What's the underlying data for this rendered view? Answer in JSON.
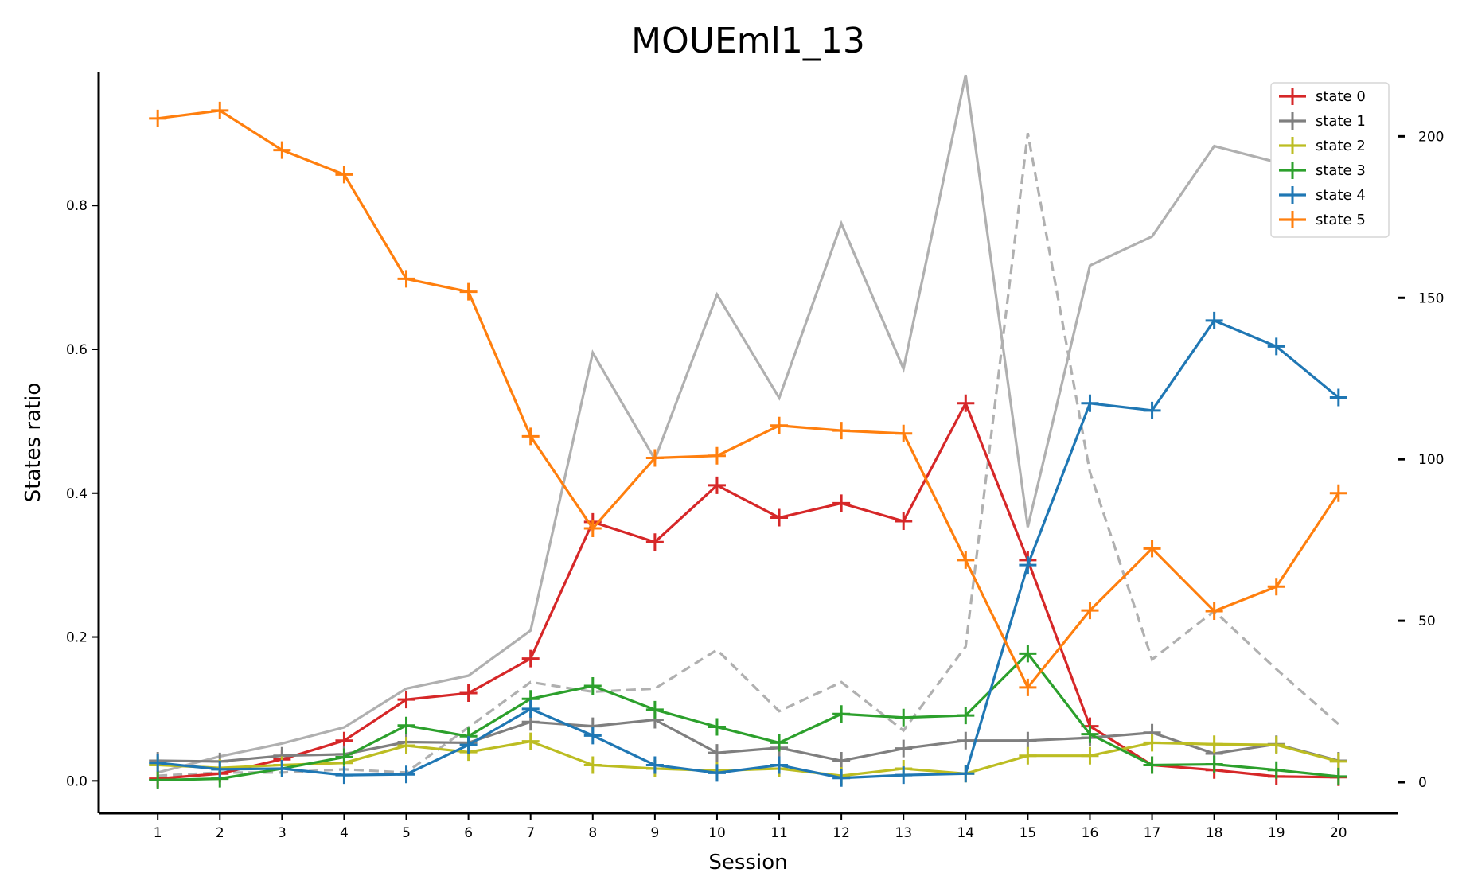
{
  "chart_data": {
    "type": "line",
    "title": "MOUEml1_13",
    "xlabel": "Session",
    "ylabel": "States ratio",
    "x": [
      1,
      2,
      3,
      4,
      5,
      6,
      7,
      8,
      9,
      10,
      11,
      12,
      13,
      14,
      15,
      16,
      17,
      18,
      19,
      20
    ],
    "x_ticks": [
      "1",
      "2",
      "3",
      "4",
      "5",
      "6",
      "7",
      "8",
      "9",
      "10",
      "11",
      "12",
      "13",
      "14",
      "15",
      "16",
      "17",
      "18",
      "19",
      "20"
    ],
    "y_ticks": [
      "0.0",
      "0.2",
      "0.4",
      "0.6",
      "0.8"
    ],
    "y2_ticks": [
      "0",
      "50",
      "100",
      "150",
      "200"
    ],
    "ylim": [
      -0.045,
      0.985
    ],
    "y2lim": [
      -9.6,
      219.8
    ],
    "xlim": [
      0.05,
      20.95
    ],
    "legend_position": "top-right",
    "grid": false,
    "series": [
      {
        "name": "state 0",
        "color": "#d62728",
        "marker": "+",
        "values": [
          0.003,
          0.01,
          0.03,
          0.056,
          0.113,
          0.122,
          0.17,
          0.36,
          0.332,
          0.411,
          0.366,
          0.386,
          0.361,
          0.525,
          0.307,
          0.076,
          0.022,
          0.015,
          0.006,
          0.005
        ]
      },
      {
        "name": "state 1",
        "color": "#7f7f7f",
        "marker": "+",
        "values": [
          0.028,
          0.027,
          0.035,
          0.037,
          0.054,
          0.053,
          0.082,
          0.076,
          0.085,
          0.039,
          0.046,
          0.028,
          0.045,
          0.056,
          0.056,
          0.06,
          0.067,
          0.038,
          0.051,
          0.028
        ]
      },
      {
        "name": "state 2",
        "color": "#bcbd22",
        "marker": "+",
        "values": [
          0.022,
          0.018,
          0.022,
          0.025,
          0.049,
          0.04,
          0.055,
          0.022,
          0.017,
          0.014,
          0.017,
          0.007,
          0.017,
          0.01,
          0.035,
          0.035,
          0.053,
          0.051,
          0.05,
          0.027
        ]
      },
      {
        "name": "state 3",
        "color": "#2ca02c",
        "marker": "+",
        "values": [
          0.001,
          0.003,
          0.017,
          0.033,
          0.077,
          0.062,
          0.114,
          0.132,
          0.099,
          0.075,
          0.053,
          0.093,
          0.088,
          0.091,
          0.177,
          0.065,
          0.022,
          0.023,
          0.015,
          0.006
        ]
      },
      {
        "name": "state 4",
        "color": "#1f77b4",
        "marker": "+",
        "values": [
          0.025,
          0.016,
          0.017,
          0.008,
          0.009,
          0.05,
          0.1,
          0.063,
          0.022,
          0.011,
          0.022,
          0.004,
          0.008,
          0.01,
          0.3,
          0.525,
          0.515,
          0.64,
          0.604,
          0.533
        ]
      },
      {
        "name": "state 5",
        "color": "#ff7f0e",
        "marker": "+",
        "values": [
          0.921,
          0.932,
          0.877,
          0.843,
          0.698,
          0.68,
          0.479,
          0.351,
          0.449,
          0.452,
          0.494,
          0.487,
          0.483,
          0.307,
          0.13,
          0.237,
          0.323,
          0.236,
          0.27,
          0.4
        ]
      }
    ],
    "secondary_series": [
      {
        "color": "#b0b0b0",
        "style": "solid",
        "values": [
          3,
          8,
          12,
          17,
          29,
          33,
          47,
          133,
          100,
          151,
          119,
          173,
          128,
          219,
          79,
          160,
          169,
          197,
          192,
          185
        ]
      },
      {
        "color": "#b0b0b0",
        "style": "dashed",
        "values": [
          2,
          3,
          3,
          4,
          3,
          17,
          31,
          28,
          29,
          41,
          22,
          31,
          16,
          42,
          201,
          96,
          38,
          53,
          35,
          18
        ]
      }
    ]
  }
}
